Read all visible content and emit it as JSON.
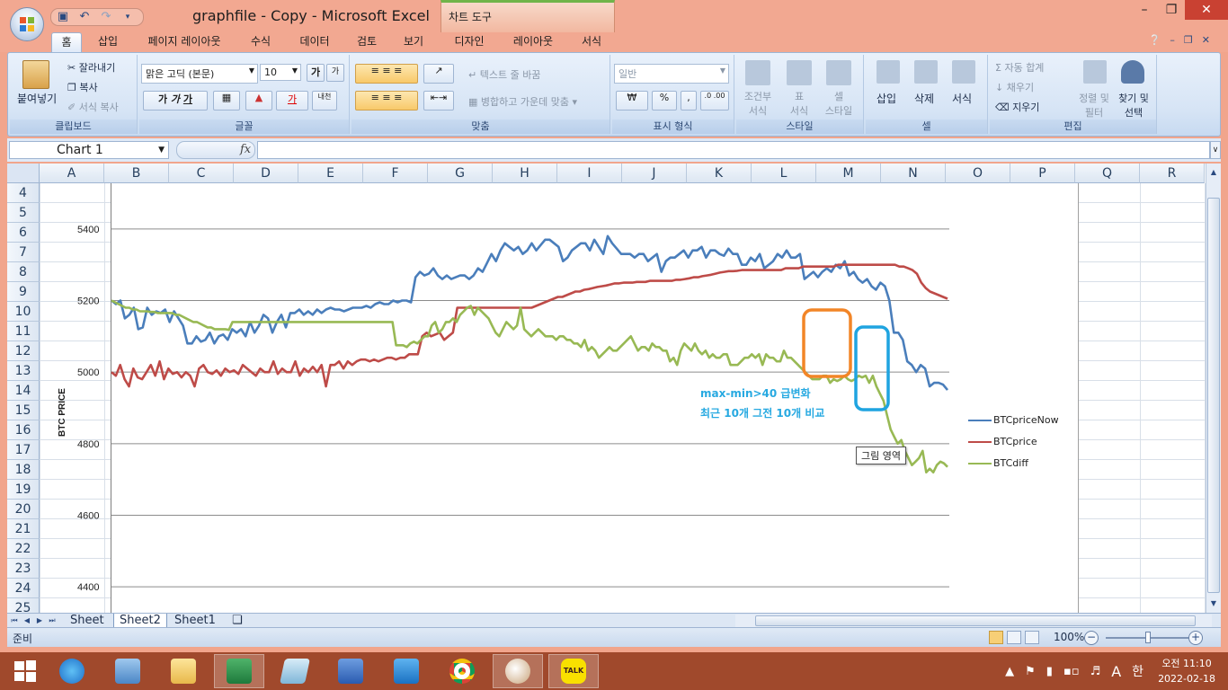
{
  "window": {
    "title": "graphfile - Copy  -  Microsoft Excel",
    "contextual_tab": "차트 도구"
  },
  "ribbon_tabs": [
    "홈",
    "삽입",
    "페이지 레이아웃",
    "수식",
    "데이터",
    "검토",
    "보기",
    "디자인",
    "레이아웃",
    "서식"
  ],
  "ribbon": {
    "clipboard": {
      "paste": "붙여넣기",
      "cut": "잘라내기",
      "copy": "복사",
      "format_painter": "서식 복사",
      "label": "클립보드"
    },
    "font": {
      "font_name": "맑은 고딕 (본문)",
      "font_size": "10",
      "label": "글꼴"
    },
    "alignment": {
      "wrap_text": "텍스트 줄 바꿈",
      "merge_center": "병합하고 가운데 맞춤",
      "label": "맞춤"
    },
    "number": {
      "format": "일반",
      "label": "표시 형식"
    },
    "styles": {
      "conditional": "조건부",
      "conditional2": "서식",
      "table": "표",
      "table2": "서식",
      "cell": "셀",
      "cell2": "스타일",
      "label": "스타일"
    },
    "cells": {
      "insert": "삽입",
      "delete": "삭제",
      "format": "서식",
      "label": "셀"
    },
    "editing": {
      "autosum": "자동 합계",
      "fill": "채우기",
      "clear": "지우기",
      "sort": "정렬 및",
      "sort2": "필터",
      "find": "찾기 및",
      "find2": "선택",
      "label": "편집"
    }
  },
  "formula_bar": {
    "name_box": "Chart 1",
    "fx": "fx",
    "value": ""
  },
  "columns": [
    "A",
    "B",
    "C",
    "D",
    "E",
    "F",
    "G",
    "H",
    "I",
    "J",
    "K",
    "L",
    "M",
    "N",
    "O",
    "P",
    "Q",
    "R"
  ],
  "rows": [
    "4",
    "5",
    "6",
    "7",
    "8",
    "9",
    "10",
    "11",
    "12",
    "13",
    "14",
    "15",
    "16",
    "17",
    "18",
    "19",
    "20",
    "21",
    "22",
    "23",
    "24",
    "25"
  ],
  "chart_data": {
    "type": "line",
    "title": "",
    "ylabel": "BTC PRICE",
    "xlabel": "",
    "ylim": [
      4300,
      5500
    ],
    "yticks": [
      4400,
      4600,
      4800,
      5000,
      5200,
      5400
    ],
    "grid": true,
    "legend_position": "right",
    "series": [
      {
        "name": "BTCpriceNow",
        "color": "#4a7ebb",
        "values": [
          5200,
          5190,
          5200,
          5150,
          5160,
          5180,
          5120,
          5125,
          5180,
          5160,
          5170,
          5165,
          5175,
          5140,
          5170,
          5150,
          5130,
          5080,
          5080,
          5100,
          5085,
          5090,
          5110,
          5080,
          5100,
          5105,
          5090,
          5120,
          5110,
          5120,
          5100,
          5140,
          5110,
          5130,
          5160,
          5150,
          5110,
          5140,
          5160,
          5125,
          5165,
          5165,
          5175,
          5160,
          5170,
          5160,
          5175,
          5165,
          5175,
          5180,
          5175,
          5175,
          5170,
          5175,
          5180,
          5180,
          5180,
          5185,
          5180,
          5190,
          5195,
          5190,
          5190,
          5200,
          5195,
          5200,
          5200,
          5195,
          5265,
          5280,
          5270,
          5275,
          5290,
          5270,
          5260,
          5270,
          5260,
          5265,
          5270,
          5270,
          5260,
          5270,
          5290,
          5280,
          5305,
          5330,
          5310,
          5340,
          5360,
          5350,
          5340,
          5350,
          5330,
          5340,
          5360,
          5340,
          5355,
          5370,
          5370,
          5360,
          5350,
          5310,
          5320,
          5340,
          5350,
          5360,
          5360,
          5340,
          5370,
          5350,
          5330,
          5380,
          5360,
          5345,
          5330,
          5330,
          5330,
          5320,
          5330,
          5330,
          5310,
          5320,
          5330,
          5280,
          5310,
          5320,
          5320,
          5330,
          5340,
          5320,
          5340,
          5340,
          5350,
          5320,
          5340,
          5340,
          5330,
          5325,
          5345,
          5330,
          5330,
          5300,
          5300,
          5320,
          5310,
          5330,
          5290,
          5300,
          5310,
          5330,
          5320,
          5340,
          5320,
          5320,
          5330,
          5260,
          5270,
          5280,
          5265,
          5280,
          5290,
          5280,
          5300,
          5290,
          5310,
          5270,
          5280,
          5260,
          5250,
          5260,
          5240,
          5230,
          5250,
          5240,
          5200,
          5110,
          5110,
          5090,
          5030,
          5020,
          5000,
          5020,
          5010,
          4960,
          4970,
          4970,
          4965,
          4950
        ]
      },
      {
        "name": "BTCprice",
        "color": "#be4b48",
        "values": [
          5000,
          4990,
          5020,
          4980,
          4960,
          5010,
          4985,
          4980,
          5000,
          5020,
          4990,
          5030,
          4980,
          5010,
          4995,
          5000,
          4985,
          5000,
          4990,
          4960,
          5010,
          5020,
          5000,
          4995,
          5005,
          4990,
          5010,
          5000,
          5005,
          4995,
          5020,
          5010,
          5000,
          4990,
          5010,
          5000,
          5000,
          5030,
          4995,
          5010,
          5000,
          5000,
          5030,
          4990,
          5010,
          5000,
          5015,
          5000,
          5020,
          4960,
          5020,
          5020,
          5030,
          5010,
          5030,
          5020,
          5030,
          5035,
          5035,
          5030,
          5035,
          5030,
          5035,
          5040,
          5040,
          5035,
          5040,
          5040,
          5050,
          5050,
          5050,
          5100,
          5110,
          5100,
          5105,
          5110,
          5090,
          5100,
          5110,
          5180,
          5180,
          5180,
          5180,
          5180,
          5180,
          5180,
          5180,
          5180,
          5180,
          5180,
          5180,
          5180,
          5180,
          5180,
          5180,
          5180,
          5180,
          5185,
          5190,
          5195,
          5200,
          5205,
          5210,
          5210,
          5215,
          5220,
          5225,
          5225,
          5230,
          5232,
          5235,
          5238,
          5240,
          5242,
          5245,
          5248,
          5248,
          5250,
          5250,
          5250,
          5252,
          5252,
          5252,
          5255,
          5255,
          5255,
          5255,
          5255,
          5255,
          5258,
          5258,
          5260,
          5262,
          5265,
          5265,
          5268,
          5270,
          5272,
          5275,
          5278,
          5280,
          5282,
          5282,
          5283,
          5285,
          5285,
          5285,
          5285,
          5285,
          5285,
          5285,
          5285,
          5285,
          5285,
          5290,
          5290,
          5290,
          5290,
          5295,
          5295,
          5295,
          5295,
          5295,
          5295,
          5295,
          5295,
          5300,
          5300,
          5300,
          5300,
          5300,
          5300,
          5300,
          5300,
          5300,
          5300,
          5300,
          5300,
          5300,
          5300,
          5295,
          5295,
          5290,
          5285,
          5275,
          5250,
          5235,
          5225,
          5220,
          5215,
          5210,
          5205
        ]
      },
      {
        "name": "BTCdiff",
        "color": "#98b954",
        "values": [
          5200,
          5195,
          5190,
          5185,
          5180,
          5180,
          5175,
          5175,
          5170,
          5170,
          5170,
          5168,
          5168,
          5165,
          5165,
          5165,
          5165,
          5165,
          5160,
          5160,
          5155,
          5150,
          5145,
          5140,
          5140,
          5135,
          5130,
          5125,
          5125,
          5120,
          5120,
          5120,
          5120,
          5118,
          5140,
          5140,
          5140,
          5140,
          5140,
          5140,
          5140,
          5140,
          5140,
          5140,
          5140,
          5140,
          5140,
          5140,
          5140,
          5140,
          5140,
          5140,
          5140,
          5140,
          5140,
          5140,
          5140,
          5140,
          5140,
          5140,
          5140,
          5140,
          5140,
          5140,
          5140,
          5140,
          5140,
          5140,
          5140,
          5140,
          5140,
          5140,
          5140,
          5140,
          5140,
          5140,
          5140,
          5140,
          5140,
          5140,
          5075,
          5075,
          5075,
          5070,
          5080,
          5085,
          5080,
          5090,
          5100,
          5100,
          5130,
          5140,
          5110,
          5120,
          5140,
          5140,
          5150,
          5140,
          5160,
          5170,
          5180,
          5185,
          5160,
          5180,
          5170,
          5160,
          5150,
          5130,
          5110,
          5100,
          5120,
          5140,
          5130,
          5120,
          5130,
          5180,
          5120,
          5110,
          5100,
          5110,
          5120,
          5110,
          5100,
          5100,
          5100,
          5090,
          5100,
          5100,
          5090,
          5090,
          5080,
          5080,
          5070,
          5090,
          5060,
          5070,
          5060,
          5040,
          5050,
          5060,
          5070,
          5060,
          5060,
          5070,
          5080,
          5090,
          5100,
          5080,
          5060,
          5070,
          5070,
          5060,
          5080,
          5070,
          5070,
          5060,
          5060,
          5030,
          5040,
          5020,
          5060,
          5080,
          5070,
          5060,
          5080,
          5060,
          5050,
          5060,
          5040,
          5050,
          5040,
          5040,
          5050,
          5050,
          5020,
          5020,
          5020,
          5030,
          5040,
          5040,
          5050,
          5040,
          5050,
          5020,
          5050,
          5040,
          5040,
          5030,
          5030,
          5060,
          5040,
          5040,
          5030,
          5020,
          5010,
          5000,
          4990,
          4980,
          4980,
          4980,
          4990,
          4990,
          4970,
          4980,
          4975,
          4980,
          4990,
          4980,
          4975,
          4980,
          4990,
          4985,
          4990,
          4970,
          4990,
          4960,
          4940,
          4920,
          4880,
          4840,
          4820,
          4800,
          4810,
          4780,
          4760,
          4740,
          4750,
          4760,
          4780,
          4720,
          4730,
          4720,
          4740,
          4750,
          4745,
          4735
        ]
      }
    ],
    "annotations": [
      "max-min>40 급변화",
      "최근 10개 그전 10개 비교"
    ],
    "tooltip": "그림 영역",
    "highlight_colors": {
      "orange_box": "#f28527",
      "blue_box": "#1fa4e0"
    }
  },
  "sheets": [
    "Sheet",
    "Sheet2",
    "Sheet1"
  ],
  "active_sheet": "Sheet2",
  "status": {
    "ready": "준비",
    "zoom": "100%"
  },
  "taskbar": {
    "apps": [
      "start-button",
      "internet-explorer",
      "control-panel",
      "file-explorer",
      "excel",
      "notes",
      "word",
      "hangul",
      "chrome",
      "paint",
      "kakaotalk"
    ],
    "tray": {
      "ime_lang": "A",
      "ime_mode": "한"
    },
    "clock": {
      "time": "오전 11:10",
      "date": "2022-02-18"
    }
  }
}
